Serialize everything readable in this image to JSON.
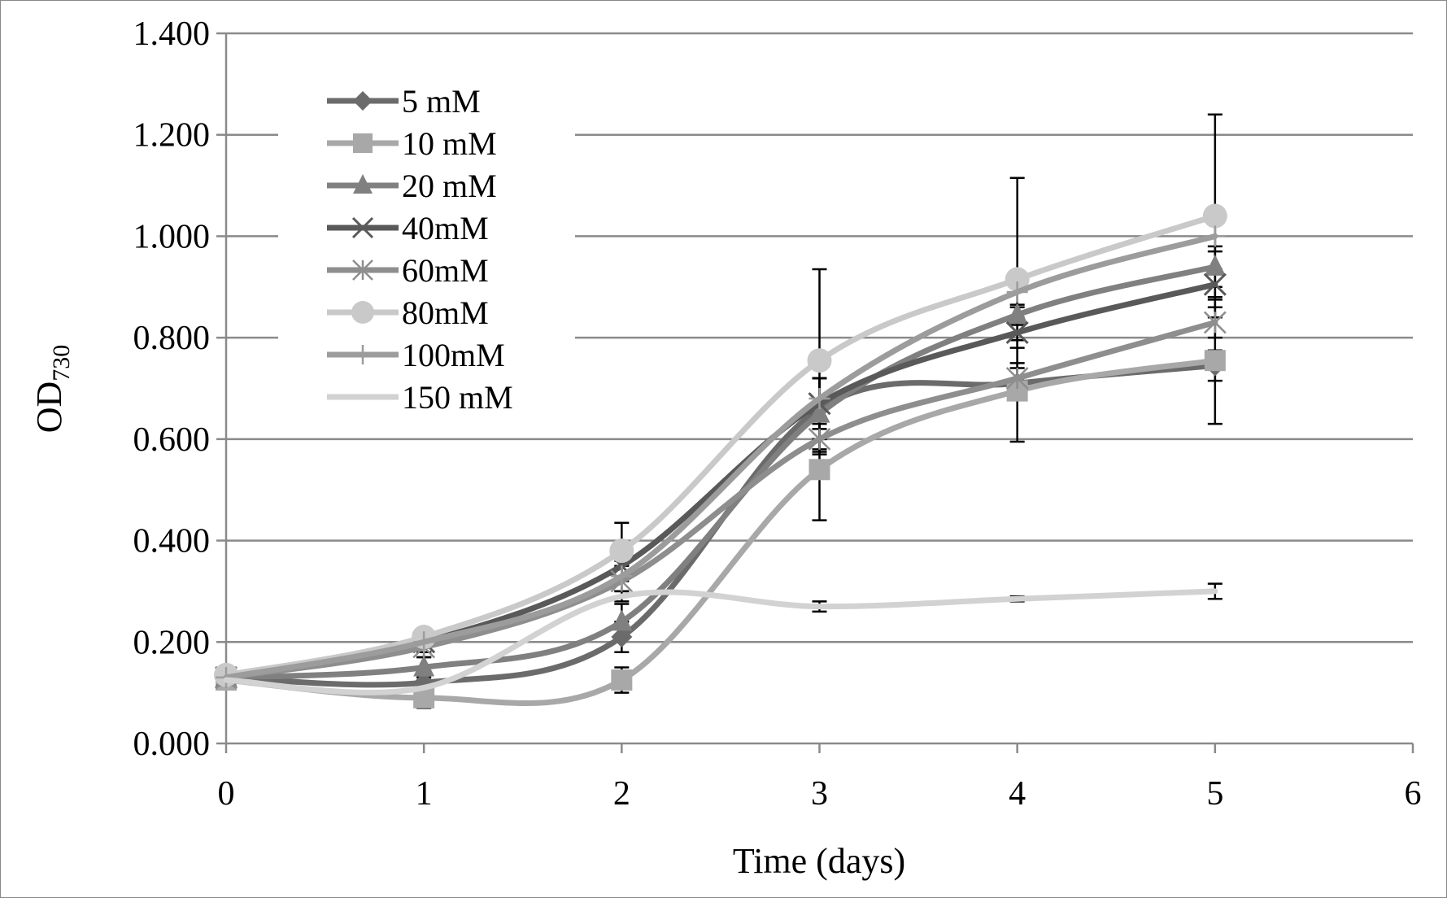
{
  "chart_data": {
    "type": "line",
    "title": "",
    "xlabel": "Time (days)",
    "ylabel": "OD",
    "ylabel_subscript": "730",
    "xlim": [
      0,
      6
    ],
    "ylim": [
      0,
      1.4
    ],
    "x_ticks": [
      "0",
      "1",
      "2",
      "3",
      "4",
      "5",
      "6"
    ],
    "y_ticks": [
      "0.000",
      "0.200",
      "0.400",
      "0.600",
      "0.800",
      "1.000",
      "1.200",
      "1.400"
    ],
    "grid": "horizontal",
    "legend_position": "top-left",
    "smoothed": true,
    "x": [
      0,
      1,
      2,
      3,
      4,
      5
    ],
    "series": [
      {
        "name": "5 mM",
        "marker": "diamond",
        "color": "#6b6b6b",
        "values": [
          0.13,
          0.12,
          0.21,
          0.66,
          0.71,
          0.745
        ],
        "error": [
          0.01,
          0.02,
          0.03,
          0.06,
          0.03,
          0.03
        ]
      },
      {
        "name": "10 mM",
        "marker": "square",
        "color": "#a8a8a8",
        "values": [
          0.125,
          0.09,
          0.125,
          0.54,
          0.695,
          0.755
        ],
        "error": [
          0.01,
          0.02,
          0.025,
          0.1,
          0.1,
          0.125
        ]
      },
      {
        "name": "20 mM",
        "marker": "triangle",
        "color": "#808080",
        "values": [
          0.13,
          0.15,
          0.24,
          0.65,
          0.845,
          0.94
        ],
        "error": [
          0.01,
          0.02,
          0.035,
          0.07,
          0.02,
          0.04
        ]
      },
      {
        "name": "40mM",
        "marker": "x",
        "color": "#595959",
        "values": [
          0.13,
          0.2,
          0.35,
          0.67,
          0.81,
          0.905
        ],
        "error": [
          0.01,
          0.02,
          0.03,
          0.05,
          0.03,
          0.03
        ]
      },
      {
        "name": "60mM",
        "marker": "asterisk",
        "color": "#8e8e8e",
        "values": [
          0.13,
          0.19,
          0.32,
          0.6,
          0.72,
          0.83
        ],
        "error": [
          0.01,
          0.02,
          0.03,
          0.03,
          0.03,
          0.03
        ]
      },
      {
        "name": "80mM",
        "marker": "circle",
        "color": "#c9c9c9",
        "values": [
          0.135,
          0.21,
          0.38,
          0.755,
          0.915,
          1.04
        ],
        "error": [
          0.01,
          0.01,
          0.055,
          0.18,
          0.2,
          0.2
        ]
      },
      {
        "name": "100mM",
        "marker": "plus",
        "color": "#9c9c9c",
        "values": [
          0.13,
          0.2,
          0.33,
          0.68,
          0.89,
          1.0
        ],
        "error": [
          0.01,
          0.02,
          0.03,
          0.04,
          0.03,
          0.03
        ]
      },
      {
        "name": "150 mM",
        "marker": "none",
        "color": "#d2d2d2",
        "values": [
          0.125,
          0.11,
          0.29,
          0.27,
          0.285,
          0.3
        ],
        "error": [
          0.01,
          0.01,
          0.01,
          0.01,
          0.005,
          0.015
        ]
      }
    ]
  }
}
